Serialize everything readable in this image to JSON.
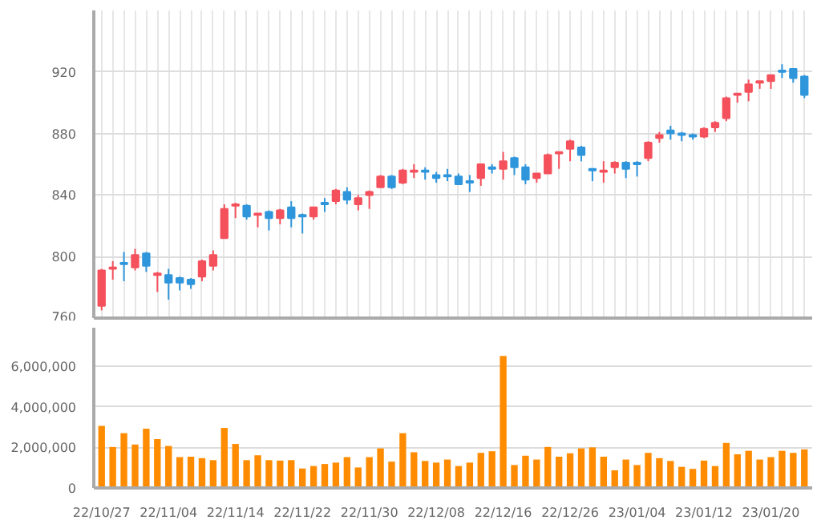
{
  "chart_data": [
    {
      "type": "candlestick",
      "categories": [
        null,
        null,
        null,
        null,
        null,
        null,
        null,
        null,
        null,
        null,
        null,
        null,
        null,
        null,
        null,
        null,
        null,
        null,
        null,
        null,
        null,
        null,
        null,
        null,
        null,
        null,
        null,
        null,
        null,
        null,
        null,
        null,
        null,
        null,
        null,
        null,
        null,
        null,
        null,
        null,
        null,
        null,
        null,
        null,
        null,
        null,
        null,
        null,
        null,
        null,
        null,
        null,
        null,
        null,
        null,
        null,
        null,
        null,
        null,
        null,
        null,
        null,
        null,
        null
      ],
      "ohlc": [
        [
          768,
          792,
          765,
          791
        ],
        [
          792,
          797,
          785,
          793
        ],
        [
          796,
          803,
          784,
          795
        ],
        [
          793,
          805,
          791,
          801
        ],
        [
          802,
          803,
          790,
          794
        ],
        [
          788,
          790,
          777,
          789
        ],
        [
          788,
          792,
          772,
          783
        ],
        [
          786,
          787,
          778,
          783
        ],
        [
          785,
          786,
          779,
          782
        ],
        [
          787,
          798,
          784,
          797
        ],
        [
          794,
          804,
          791,
          801
        ],
        [
          812,
          834,
          812,
          831
        ],
        [
          833,
          835,
          825,
          834
        ],
        [
          833,
          834,
          824,
          826
        ],
        [
          827,
          828,
          819,
          828
        ],
        [
          829,
          830,
          817,
          825
        ],
        [
          825,
          831,
          821,
          830
        ],
        [
          832,
          836,
          819,
          825
        ],
        [
          827,
          828,
          815,
          826
        ],
        [
          826,
          832,
          824,
          832
        ],
        [
          835,
          838,
          829,
          834
        ],
        [
          836,
          844,
          834,
          843
        ],
        [
          842,
          845,
          834,
          837
        ],
        [
          834,
          840,
          830,
          838
        ],
        [
          840,
          843,
          831,
          842
        ],
        [
          845,
          853,
          845,
          852
        ],
        [
          852,
          853,
          844,
          845
        ],
        [
          848,
          857,
          847,
          856
        ],
        [
          855,
          860,
          851,
          856
        ],
        [
          856,
          858,
          850,
          855
        ],
        [
          853,
          855,
          848,
          851
        ],
        [
          853,
          857,
          849,
          852
        ],
        [
          852,
          854,
          847,
          847
        ],
        [
          849,
          853,
          842,
          848
        ],
        [
          851,
          860,
          846,
          860
        ],
        [
          858,
          860,
          854,
          857
        ],
        [
          857,
          868,
          850,
          862
        ],
        [
          864,
          865,
          853,
          858
        ],
        [
          858,
          860,
          847,
          850
        ],
        [
          851,
          854,
          848,
          854
        ],
        [
          854,
          867,
          854,
          866
        ],
        [
          867,
          868,
          857,
          868
        ],
        [
          870,
          876,
          862,
          875
        ],
        [
          871,
          872,
          862,
          866
        ],
        [
          857,
          857,
          849,
          856
        ],
        [
          855,
          862,
          848,
          856
        ],
        [
          858,
          862,
          854,
          861
        ],
        [
          861,
          862,
          851,
          857
        ],
        [
          861,
          862,
          852,
          860
        ],
        [
          864,
          875,
          862,
          874
        ],
        [
          877,
          881,
          874,
          879
        ],
        [
          882,
          885,
          876,
          880
        ],
        [
          880,
          881,
          875,
          879
        ],
        [
          879,
          880,
          876,
          878
        ],
        [
          878,
          884,
          877,
          883
        ],
        [
          884,
          888,
          881,
          887
        ],
        [
          890,
          904,
          888,
          903
        ],
        [
          905,
          906,
          900,
          906
        ],
        [
          907,
          915,
          901,
          912
        ],
        [
          913,
          914,
          909,
          914
        ],
        [
          914,
          918,
          909,
          918
        ],
        [
          921,
          925,
          916,
          920
        ],
        [
          922,
          922,
          913,
          916
        ],
        [
          917,
          918,
          903,
          905
        ]
      ],
      "colors": [
        "#f4515c",
        "#f4515c",
        "#2f96dc",
        "#f4515c",
        "#2f96dc",
        "#f4515c",
        "#2f96dc",
        "#2f96dc",
        "#2f96dc",
        "#f4515c",
        "#f4515c",
        "#f4515c",
        "#f4515c",
        "#2f96dc",
        "#f4515c",
        "#2f96dc",
        "#f4515c",
        "#2f96dc",
        "#2f96dc",
        "#f4515c",
        "#2f96dc",
        "#f4515c",
        "#2f96dc",
        "#f4515c",
        "#f4515c",
        "#f4515c",
        "#2f96dc",
        "#f4515c",
        "#f4515c",
        "#2f96dc",
        "#2f96dc",
        "#2f96dc",
        "#2f96dc",
        "#2f96dc",
        "#f4515c",
        "#2f96dc",
        "#f4515c",
        "#2f96dc",
        "#2f96dc",
        "#f4515c",
        "#f4515c",
        "#f4515c",
        "#f4515c",
        "#2f96dc",
        "#2f96dc",
        "#f4515c",
        "#f4515c",
        "#2f96dc",
        "#2f96dc",
        "#f4515c",
        "#f4515c",
        "#2f96dc",
        "#2f96dc",
        "#2f96dc",
        "#f4515c",
        "#f4515c",
        "#f4515c",
        "#f4515c",
        "#f4515c",
        "#f4515c",
        "#f4515c",
        "#2f96dc",
        "#2f96dc",
        "#2f96dc"
      ],
      "ylim": [
        760,
        960
      ],
      "yticks": [
        760,
        800,
        840,
        880,
        920
      ],
      "grid": true,
      "tick_labels": "y"
    },
    {
      "type": "bar",
      "categories": [
        "22/10/27",
        null,
        null,
        null,
        null,
        null,
        "22/11/04",
        null,
        null,
        null,
        null,
        null,
        "22/11/14",
        null,
        null,
        null,
        null,
        null,
        "22/11/22",
        null,
        null,
        null,
        null,
        null,
        "22/11/30",
        null,
        null,
        null,
        null,
        null,
        "22/12/08",
        null,
        null,
        null,
        null,
        null,
        "22/12/16",
        null,
        null,
        null,
        null,
        null,
        "22/12/26",
        null,
        null,
        null,
        null,
        null,
        "23/01/04",
        null,
        null,
        null,
        null,
        null,
        "23/01/12",
        null,
        null,
        null,
        null,
        null,
        "23/01/20",
        null,
        null,
        null
      ],
      "values": [
        3060000,
        2020000,
        2700000,
        2140000,
        2920000,
        2410000,
        2070000,
        1520000,
        1540000,
        1470000,
        1370000,
        2960000,
        2170000,
        1370000,
        1610000,
        1370000,
        1350000,
        1370000,
        960000,
        1080000,
        1180000,
        1250000,
        1520000,
        1010000,
        1520000,
        1950000,
        1300000,
        2700000,
        1760000,
        1330000,
        1250000,
        1400000,
        1080000,
        1250000,
        1730000,
        1810000,
        6510000,
        1130000,
        1590000,
        1400000,
        2020000,
        1540000,
        1710000,
        1950000,
        2000000,
        1540000,
        870000,
        1400000,
        1130000,
        1730000,
        1470000,
        1330000,
        1040000,
        940000,
        1350000,
        1080000,
        2220000,
        1660000,
        1830000,
        1400000,
        1520000,
        1830000,
        1730000,
        1900000
      ],
      "color": "#ff8c00",
      "ylim": [
        0,
        7900000
      ],
      "yticks": [
        0,
        {
          "value": 2000000,
          "label": "2,000,000"
        },
        {
          "value": 4000000,
          "label": "4,000,000"
        },
        {
          "value": 6000000,
          "label": "6,000,000"
        }
      ],
      "grid": "y"
    }
  ]
}
